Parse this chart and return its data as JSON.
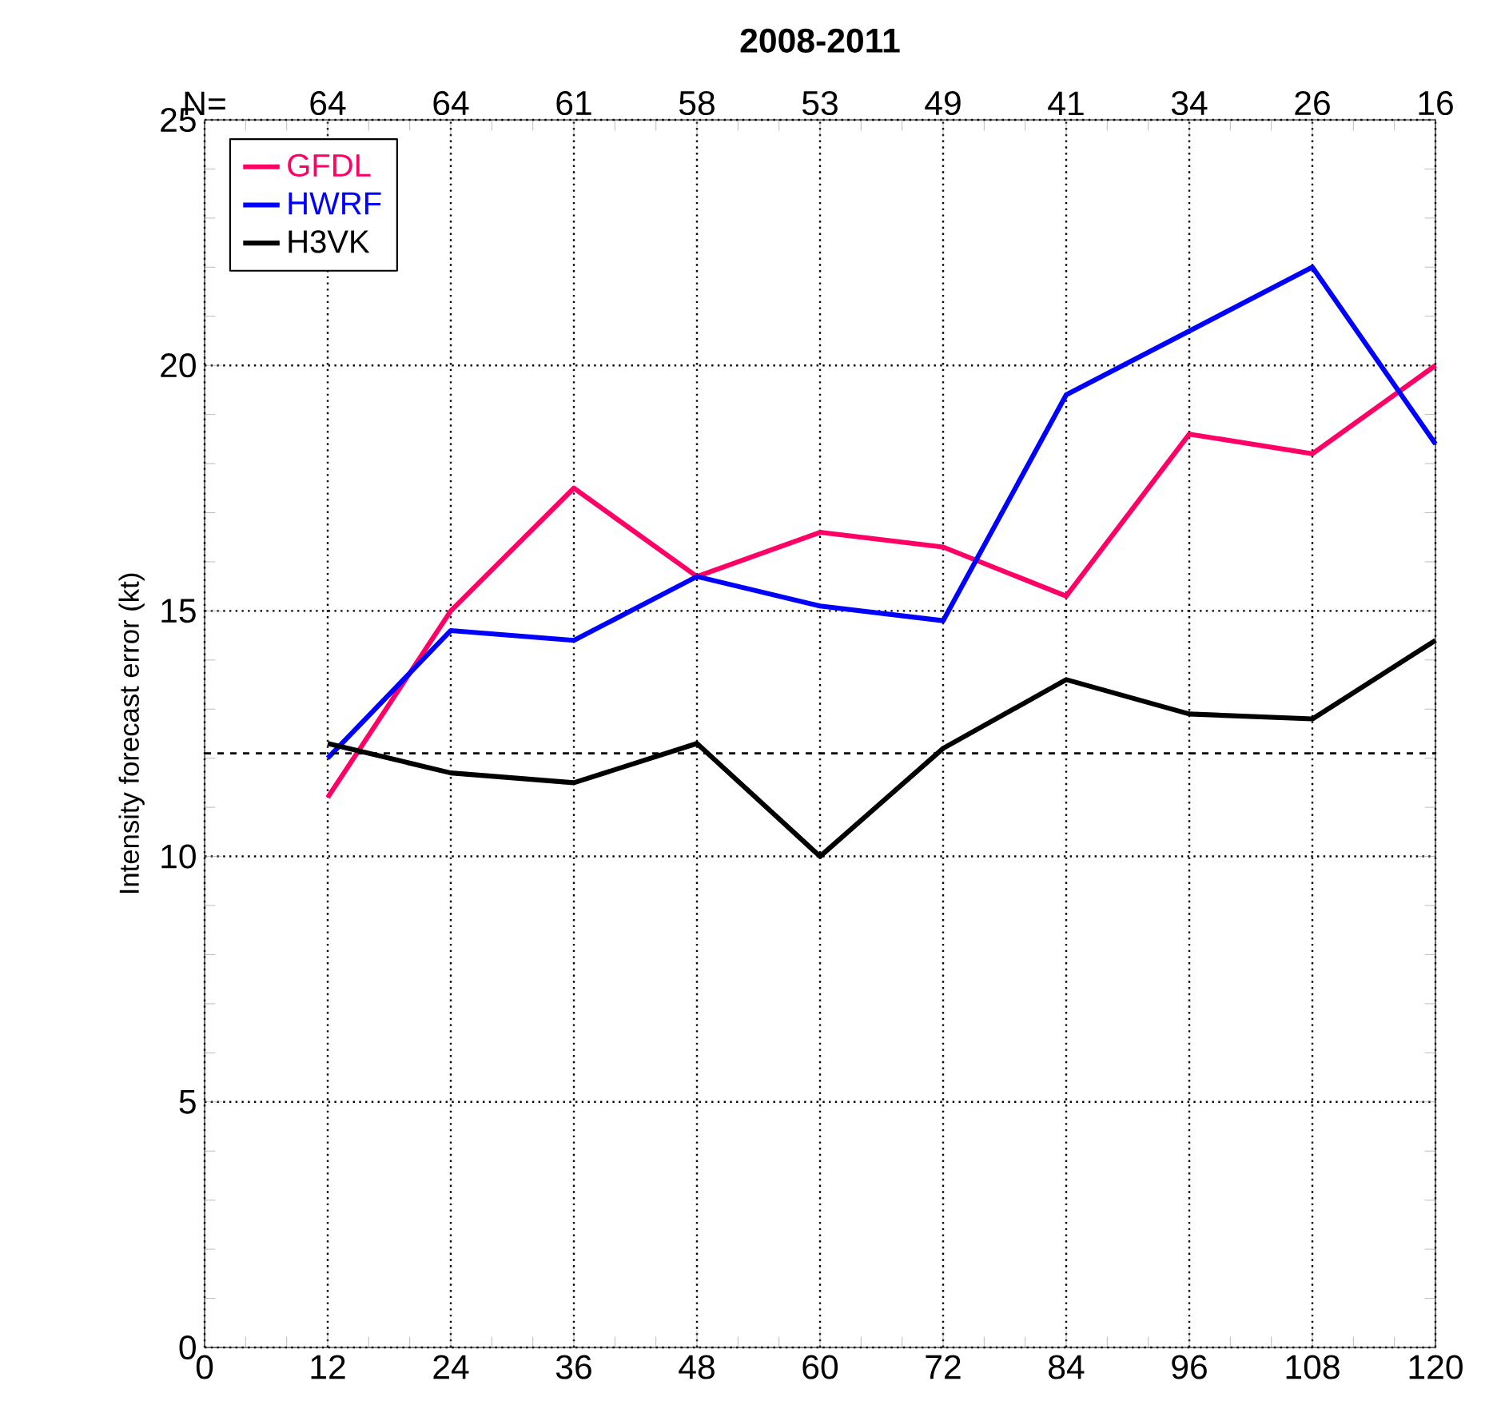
{
  "chart_data": {
    "type": "line",
    "title": "2008-2011",
    "ylabel": "Intensity forecast error (kt)",
    "x": [
      12,
      24,
      36,
      48,
      60,
      72,
      84,
      96,
      108,
      120
    ],
    "series": [
      {
        "name": "GFDL",
        "color": "#ff0066",
        "values": [
          11.2,
          15.0,
          17.5,
          15.7,
          16.6,
          16.3,
          15.3,
          18.6,
          18.2,
          20.0
        ]
      },
      {
        "name": "HWRF",
        "color": "#0000ff",
        "values": [
          12.0,
          14.6,
          14.4,
          15.7,
          15.1,
          14.8,
          19.4,
          20.7,
          22.0,
          18.4
        ]
      },
      {
        "name": "H3VK",
        "color": "#000000",
        "values": [
          12.3,
          11.7,
          11.5,
          12.3,
          10.0,
          12.2,
          13.6,
          12.9,
          12.8,
          14.4
        ]
      }
    ],
    "xlim": [
      0,
      120
    ],
    "xticks": [
      0,
      12,
      24,
      36,
      48,
      60,
      72,
      84,
      96,
      108,
      120
    ],
    "ylim": [
      0,
      25
    ],
    "yticks": [
      0,
      5,
      10,
      15,
      20,
      25
    ],
    "annotations": [
      "N=",
      "64",
      "64",
      "61",
      "58",
      "53",
      "49",
      "41",
      "34",
      "26",
      "16"
    ],
    "ref_lines": [
      {
        "axis": "y",
        "value": 12.1,
        "line_style": "dashed",
        "color": "#000000"
      }
    ],
    "grid": true,
    "legend": "top left",
    "marker": "none",
    "line_style": "solid"
  }
}
